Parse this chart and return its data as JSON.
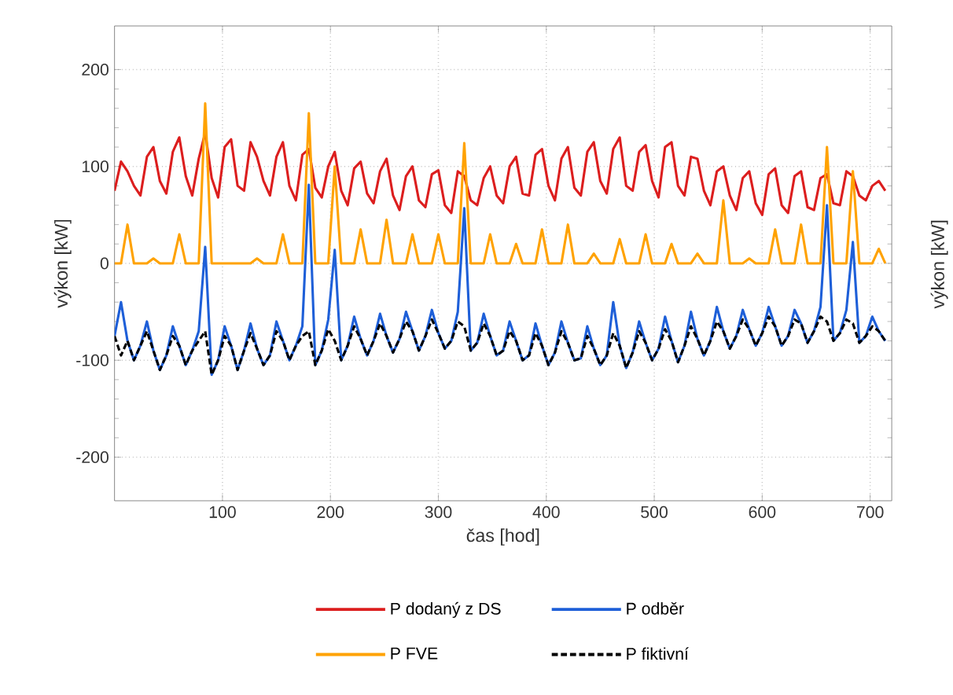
{
  "chart_data": {
    "type": "line",
    "xlabel": "čas [hod]",
    "ylabel": "výkon  [kW]",
    "y2label": "výkon  [kW]",
    "xlim": [
      0,
      720
    ],
    "ylim": [
      -245,
      245
    ],
    "xticks": [
      100,
      200,
      300,
      400,
      500,
      600,
      700
    ],
    "yticks": [
      -200,
      -100,
      0,
      100,
      200
    ],
    "grid": true,
    "legend": "bottom",
    "line_style": "solid",
    "x": [
      0,
      6,
      12,
      18,
      24,
      30,
      36,
      42,
      48,
      54,
      60,
      66,
      72,
      78,
      84,
      90,
      96,
      102,
      108,
      114,
      120,
      126,
      132,
      138,
      144,
      150,
      156,
      162,
      168,
      174,
      180,
      186,
      192,
      198,
      204,
      210,
      216,
      222,
      228,
      234,
      240,
      246,
      252,
      258,
      264,
      270,
      276,
      282,
      288,
      294,
      300,
      306,
      312,
      318,
      324,
      330,
      336,
      342,
      348,
      354,
      360,
      366,
      372,
      378,
      384,
      390,
      396,
      402,
      408,
      414,
      420,
      426,
      432,
      438,
      444,
      450,
      456,
      462,
      468,
      474,
      480,
      486,
      492,
      498,
      504,
      510,
      516,
      522,
      528,
      534,
      540,
      546,
      552,
      558,
      564,
      570,
      576,
      582,
      588,
      594,
      600,
      606,
      612,
      618,
      624,
      630,
      636,
      642,
      648,
      654,
      660,
      666,
      672,
      678,
      684,
      690,
      696,
      702,
      708,
      714
    ],
    "series": [
      {
        "name": "P dodaný z DS",
        "color": "#dc1e1e",
        "values": [
          75,
          105,
          95,
          80,
          70,
          110,
          120,
          85,
          72,
          115,
          130,
          90,
          70,
          108,
          135,
          88,
          68,
          120,
          128,
          80,
          75,
          125,
          110,
          85,
          70,
          110,
          125,
          80,
          65,
          112,
          118,
          78,
          68,
          100,
          115,
          75,
          60,
          98,
          105,
          72,
          62,
          95,
          108,
          70,
          55,
          90,
          100,
          65,
          58,
          92,
          96,
          60,
          52,
          95,
          90,
          65,
          60,
          88,
          100,
          70,
          62,
          100,
          110,
          72,
          70,
          112,
          118,
          80,
          65,
          108,
          120,
          78,
          70,
          115,
          125,
          85,
          72,
          118,
          130,
          80,
          75,
          115,
          122,
          85,
          68,
          120,
          125,
          80,
          70,
          110,
          108,
          75,
          60,
          95,
          100,
          70,
          55,
          88,
          95,
          62,
          50,
          92,
          98,
          60,
          52,
          90,
          95,
          58,
          55,
          88,
          92,
          62,
          60,
          95,
          90,
          70,
          65,
          80,
          85,
          75
        ]
      },
      {
        "name": "P odběr",
        "color": "#1e5fd8",
        "values": [
          -75,
          -40,
          -80,
          -100,
          -85,
          -60,
          -90,
          -110,
          -95,
          -65,
          -85,
          -105,
          -90,
          -70,
          17,
          -115,
          -100,
          -65,
          -85,
          -110,
          -90,
          -62,
          -88,
          -105,
          -95,
          -60,
          -80,
          -100,
          -85,
          -65,
          81,
          -105,
          -90,
          -58,
          14,
          -100,
          -85,
          -55,
          -78,
          -95,
          -80,
          -52,
          -75,
          -92,
          -78,
          -50,
          -70,
          -90,
          -75,
          -48,
          -72,
          -88,
          -80,
          -50,
          57,
          -90,
          -82,
          -52,
          -75,
          -95,
          -90,
          -60,
          -80,
          -100,
          -95,
          -62,
          -85,
          -105,
          -92,
          -60,
          -82,
          -100,
          -98,
          -65,
          -88,
          -105,
          -95,
          -40,
          -85,
          -108,
          -92,
          -60,
          -82,
          -100,
          -88,
          -55,
          -80,
          -102,
          -85,
          -50,
          -78,
          -95,
          -80,
          -45,
          -70,
          -88,
          -75,
          -48,
          -68,
          -85,
          -72,
          -45,
          -65,
          -85,
          -75,
          -48,
          -62,
          -82,
          -70,
          -45,
          60,
          -80,
          -72,
          -48,
          22,
          -82,
          -75,
          -55,
          -70,
          -80
        ]
      },
      {
        "name": "P FVE",
        "color": "#ffa200",
        "values": [
          0,
          0,
          40,
          0,
          0,
          0,
          5,
          0,
          0,
          0,
          30,
          0,
          0,
          0,
          165,
          0,
          0,
          0,
          0,
          0,
          0,
          0,
          5,
          0,
          0,
          0,
          30,
          0,
          0,
          0,
          155,
          0,
          0,
          0,
          100,
          0,
          0,
          0,
          35,
          0,
          0,
          0,
          45,
          0,
          0,
          0,
          30,
          0,
          0,
          0,
          30,
          0,
          0,
          0,
          124,
          0,
          0,
          0,
          30,
          0,
          0,
          0,
          20,
          0,
          0,
          0,
          35,
          0,
          0,
          0,
          40,
          0,
          0,
          0,
          10,
          0,
          0,
          0,
          25,
          0,
          0,
          0,
          30,
          0,
          0,
          0,
          20,
          0,
          0,
          0,
          10,
          0,
          0,
          0,
          65,
          0,
          0,
          0,
          5,
          0,
          0,
          0,
          35,
          0,
          0,
          0,
          40,
          0,
          0,
          0,
          120,
          0,
          0,
          0,
          95,
          0,
          0,
          0,
          15,
          0
        ]
      },
      {
        "name": "P fiktivní",
        "color": "#000000",
        "line_style": "dashed",
        "values": [
          -75,
          -95,
          -80,
          -100,
          -85,
          -70,
          -90,
          -110,
          -95,
          -75,
          -85,
          -105,
          -90,
          -80,
          -70,
          -115,
          -100,
          -75,
          -85,
          -110,
          -90,
          -72,
          -88,
          -105,
          -95,
          -70,
          -80,
          -100,
          -85,
          -75,
          -70,
          -105,
          -90,
          -68,
          -80,
          -100,
          -85,
          -65,
          -78,
          -95,
          -80,
          -62,
          -75,
          -92,
          -78,
          -60,
          -70,
          -90,
          -75,
          -58,
          -72,
          -88,
          -80,
          -60,
          -65,
          -90,
          -82,
          -62,
          -75,
          -95,
          -90,
          -70,
          -80,
          -100,
          -95,
          -72,
          -85,
          -105,
          -92,
          -70,
          -82,
          -100,
          -98,
          -75,
          -88,
          -105,
          -95,
          -72,
          -85,
          -108,
          -92,
          -70,
          -82,
          -100,
          -88,
          -68,
          -80,
          -102,
          -85,
          -65,
          -78,
          -95,
          -80,
          -60,
          -70,
          -88,
          -75,
          -58,
          -68,
          -85,
          -72,
          -55,
          -65,
          -85,
          -75,
          -58,
          -62,
          -82,
          -70,
          -55,
          -60,
          -80,
          -72,
          -58,
          -62,
          -82,
          -75,
          -65,
          -70,
          -80
        ]
      }
    ]
  }
}
